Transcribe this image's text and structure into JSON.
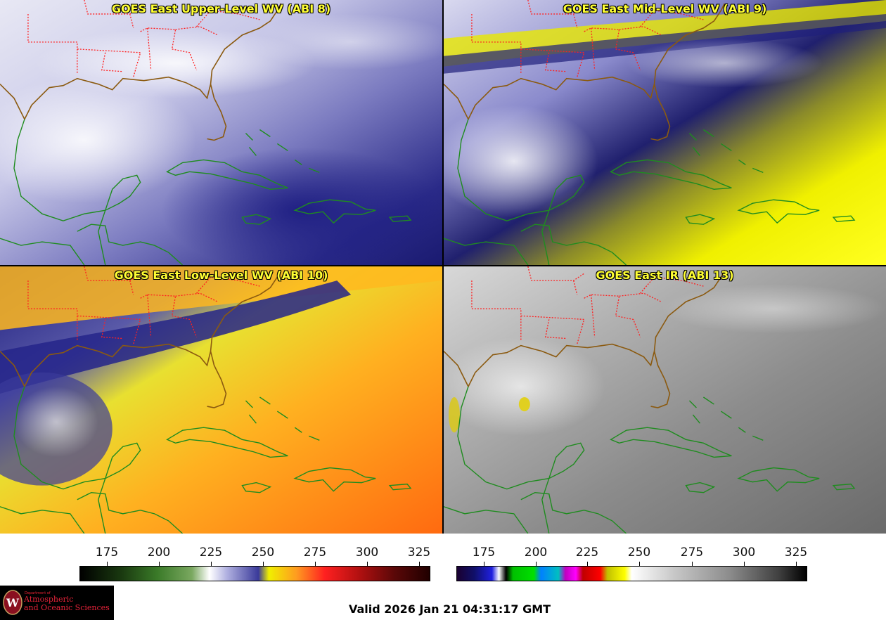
{
  "panels": {
    "upper": {
      "title": "GOES East Upper-Level WV (ABI 8)"
    },
    "mid": {
      "title": "GOES East Mid-Level WV (ABI 9)"
    },
    "low": {
      "title": "GOES East Low-Level WV (ABI 10)"
    },
    "ir": {
      "title": "GOES East IR (ABI 13)"
    }
  },
  "colorbars": {
    "wv": {
      "ticks": [
        "175",
        "200",
        "225",
        "250",
        "275",
        "300",
        "325"
      ]
    },
    "ir": {
      "ticks": [
        "175",
        "200",
        "225",
        "250",
        "275",
        "300",
        "325"
      ]
    }
  },
  "logo": {
    "line1": "Department of",
    "line2": "Atmospheric",
    "line3": "and Oceanic Sciences"
  },
  "footer": {
    "valid_time": "Valid 2026 Jan 21 04:31:17 GMT"
  },
  "colors": {
    "title_yellow": "#ffff33",
    "coast_green": "#1f8c1f",
    "state_red": "#ff2020",
    "us_coast": "#8b5a10"
  }
}
